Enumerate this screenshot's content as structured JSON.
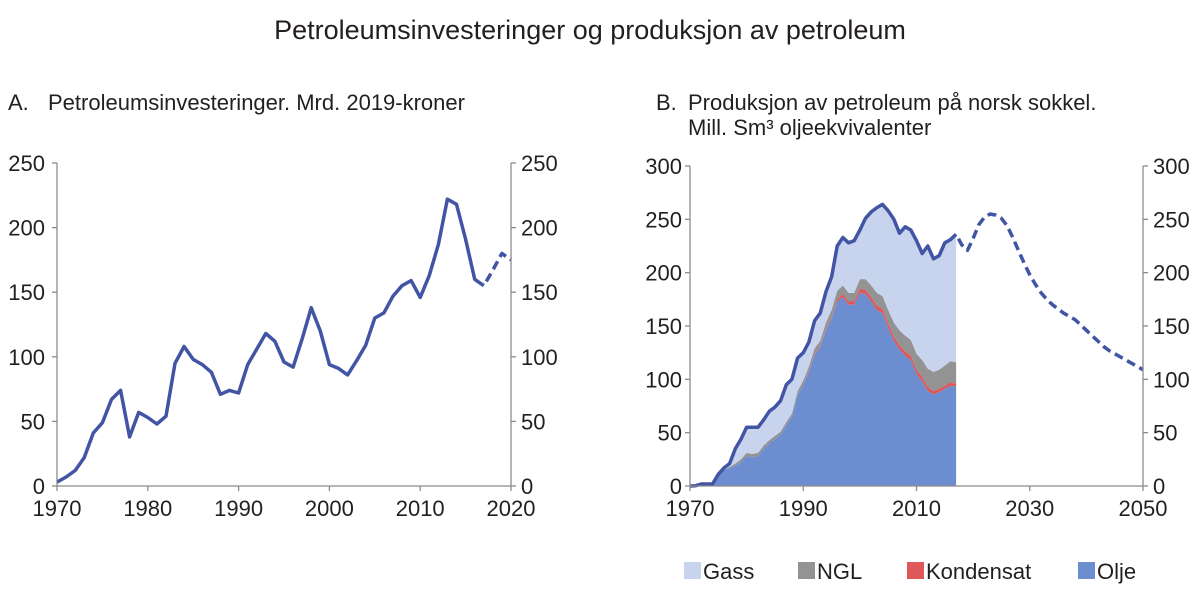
{
  "figure": {
    "title": "Petroleumsinvesteringer og produksjon av petroleum"
  },
  "chart_data": [
    {
      "type": "line",
      "panel_label": "A.",
      "title": "Petroleumsinvesteringer. Mrd. 2019-kroner",
      "xlabel": "",
      "ylabel": "",
      "xlim": [
        1970,
        2020
      ],
      "ylim": [
        0,
        250
      ],
      "x_ticks": [
        1970,
        1980,
        1990,
        2000,
        2010,
        2020
      ],
      "y_ticks": [
        0,
        50,
        100,
        150,
        200,
        250
      ],
      "y_axis_right": true,
      "grid": false,
      "line_color": "#4254A4",
      "series": [
        {
          "dashed": false,
          "x": [
            1970,
            1971,
            1972,
            1973,
            1974,
            1975,
            1976,
            1977,
            1978,
            1979,
            1980,
            1981,
            1982,
            1983,
            1984,
            1985,
            1986,
            1987,
            1988,
            1989,
            1990,
            1991,
            1992,
            1993,
            1994,
            1995,
            1996,
            1997,
            1998,
            1999,
            2000,
            2001,
            2002,
            2003,
            2004,
            2005,
            2006,
            2007,
            2008,
            2009,
            2010,
            2011,
            2012,
            2013,
            2014,
            2015,
            2016,
            2017
          ],
          "values": [
            3,
            7,
            12,
            22,
            41,
            49,
            67,
            74,
            38,
            57,
            53,
            48,
            54,
            95,
            108,
            98,
            94,
            88,
            71,
            74,
            72,
            94,
            106,
            118,
            112,
            96,
            92,
            114,
            138,
            120,
            94,
            91,
            86,
            97,
            109,
            130,
            134,
            147,
            155,
            159,
            146,
            163,
            187,
            222,
            218,
            191,
            160,
            155
          ]
        },
        {
          "dashed": true,
          "x": [
            2017,
            2018,
            2019,
            2020
          ],
          "values": [
            155,
            167,
            180,
            175
          ]
        }
      ]
    },
    {
      "type": "area",
      "stacked": true,
      "panel_label": "B.",
      "title": "Produksjon av petroleum på norsk sokkel.",
      "subtitle": "Mill. Sm³ oljeekvivalenter",
      "xlabel": "",
      "ylabel": "",
      "xlim": [
        1970,
        2050
      ],
      "ylim": [
        0,
        300
      ],
      "x_ticks": [
        1970,
        1990,
        2010,
        2030,
        2050
      ],
      "y_ticks": [
        0,
        50,
        100,
        150,
        200,
        250,
        300
      ],
      "y_axis_right": true,
      "grid": false,
      "legend": "bottom",
      "x": [
        1970,
        1971,
        1972,
        1973,
        1974,
        1975,
        1976,
        1977,
        1978,
        1979,
        1980,
        1981,
        1982,
        1983,
        1984,
        1985,
        1986,
        1987,
        1988,
        1989,
        1990,
        1991,
        1992,
        1993,
        1994,
        1995,
        1996,
        1997,
        1998,
        1999,
        2000,
        2001,
        2002,
        2003,
        2004,
        2005,
        2006,
        2007,
        2008,
        2009,
        2010,
        2011,
        2012,
        2013,
        2014,
        2015,
        2016,
        2017
      ],
      "series": [
        {
          "name": "Gass",
          "color": "#C8D3EE",
          "values": [
            0,
            0,
            0,
            0,
            0,
            1,
            2,
            3,
            14,
            19,
            24,
            25,
            24,
            24,
            27,
            27,
            29,
            35,
            32,
            31,
            26,
            23,
            26,
            26,
            29,
            31,
            42,
            45,
            47,
            49,
            46,
            57,
            69,
            80,
            86,
            93,
            97,
            91,
            102,
            103,
            106,
            100,
            115,
            106,
            107,
            115,
            114,
            120
          ]
        },
        {
          "name": "NGL",
          "color": "#939393",
          "values": [
            0,
            0,
            0,
            0,
            0,
            0,
            0,
            1,
            2,
            3,
            3,
            3,
            3,
            3,
            3,
            3,
            3,
            3,
            3,
            4,
            4,
            4,
            5,
            5,
            6,
            7,
            8,
            8,
            8,
            8,
            9,
            10,
            11,
            12,
            12,
            13,
            13,
            14,
            15,
            15,
            15,
            16,
            17,
            18,
            18,
            19,
            20,
            20
          ]
        },
        {
          "name": "Kondensat",
          "color": "#E0575A",
          "values": [
            0,
            0,
            0,
            0,
            0,
            0,
            0,
            0,
            0,
            0,
            0,
            0,
            0,
            0,
            0,
            0,
            0,
            0,
            0,
            0,
            0,
            1,
            1,
            1,
            1,
            1,
            2,
            3,
            3,
            3,
            4,
            4,
            4,
            4,
            4,
            4,
            4,
            4,
            4,
            4,
            4,
            4,
            4,
            3,
            3,
            3,
            3,
            3
          ]
        },
        {
          "name": "Olje",
          "color": "#6C8ED0",
          "values": [
            0,
            0.3,
            1.9,
            1.9,
            2,
            10,
            15,
            17,
            19,
            22,
            28,
            27,
            28,
            35,
            40,
            44,
            48,
            57,
            65,
            85,
            95,
            107,
            123,
            130,
            146,
            157,
            173,
            177,
            170,
            170,
            181,
            180,
            173,
            165,
            162,
            148,
            136,
            128,
            122,
            118,
            105,
            98,
            89,
            86,
            88,
            91,
            94,
            93
          ]
        }
      ],
      "total_line_color": "#4254A4",
      "projection": {
        "dashed": true,
        "x": [
          2017,
          2018,
          2019,
          2020,
          2021,
          2022,
          2023,
          2024,
          2025,
          2026,
          2027,
          2028,
          2029,
          2030,
          2031,
          2032,
          2033,
          2034,
          2035,
          2036,
          2037,
          2038,
          2039,
          2040,
          2041,
          2042,
          2043,
          2044,
          2045,
          2046,
          2047,
          2048,
          2049,
          2050
        ],
        "values": [
          236,
          226,
          221,
          232,
          245,
          252,
          255,
          254,
          251,
          244,
          233,
          221,
          209,
          198,
          189,
          181,
          175,
          170,
          166,
          162,
          159,
          156,
          151,
          146,
          141,
          136,
          131,
          127,
          124,
          121,
          118,
          115,
          112,
          109
        ]
      }
    }
  ]
}
